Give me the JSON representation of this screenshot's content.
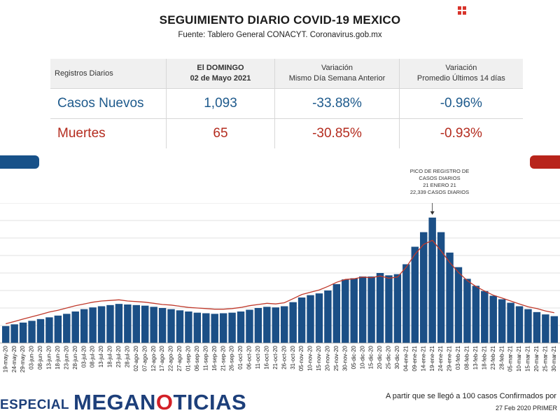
{
  "header": {
    "title": "SEGUIMIENTO DIARIO COVID-19 MEXICO",
    "source": "Fuente: Tablero General CONACYT. Coronavirus.gob.mx"
  },
  "corner_icon": "grid-icon",
  "table": {
    "col0": "Registros Diarios",
    "col1_line1": "El DOMINGO",
    "col1_line2": "02 de Mayo 2021",
    "col2_line1": "Variación",
    "col2_line2": "Mismo Día Semana Anterior",
    "col3_line1": "Variación",
    "col3_line2": "Promedio Últimos 14 días",
    "rows": [
      {
        "label": "Casos Nuevos",
        "value": "1,093",
        "weekly": "-33.88%",
        "avg14": "-0.96%"
      },
      {
        "label": "Muertes",
        "value": "65",
        "weekly": "-30.85%",
        "avg14": "-0.93%"
      }
    ]
  },
  "annotation": {
    "line1": "PICO DE REGISTRO DE",
    "line2": "CASOS DIARIOS",
    "line3": "21 ENERO 21",
    "line4": "22,339 CASOS DIARIOS"
  },
  "footer": {
    "especial": "ESPECIAL",
    "brand_part1": "MEGAN",
    "brand_accent": "O",
    "brand_part2": "TICIAS",
    "note": "A partir que se llegó a 100 casos Confirmados por",
    "date": "27 Feb 2020 PRIMER"
  },
  "colors": {
    "bars": "#1b4f86",
    "line": "#c0392b",
    "brand": "#1d3f7a",
    "accent": "#d32027"
  },
  "chart_data": {
    "type": "bar",
    "ylim": [
      0,
      24000
    ],
    "grid": true,
    "tick_labels": [
      "19-may-20",
      "24-may-20",
      "29-may-20",
      "03-jun-20",
      "08-jun-20",
      "13-jun-20",
      "18-jun-20",
      "23-jun-20",
      "28-jun-20",
      "03-jul-20",
      "08-jul-20",
      "13-jul-20",
      "18-jul-20",
      "23-jul-20",
      "28-jul-20",
      "02-ago-20",
      "07-ago-20",
      "12-ago-20",
      "17-ago-20",
      "22-ago-20",
      "27-ago-20",
      "01-sep-20",
      "06-sep-20",
      "11-sep-20",
      "16-sep-20",
      "21-sep-20",
      "26-sep-20",
      "01-oct-20",
      "06-oct-20",
      "11-oct-20",
      "16-oct-20",
      "21-oct-20",
      "26-oct-20",
      "31-oct-20",
      "05-nov-20",
      "10-nov-20",
      "15-nov-20",
      "20-nov-20",
      "25-nov-20",
      "30-nov-20",
      "05-dic-20",
      "10-dic-20",
      "15-dic-20",
      "20-dic-20",
      "25-dic-20",
      "30-dic-20",
      "04-ene-21",
      "09-ene-21",
      "14-ene-21",
      "19-ene-21",
      "24-ene-21",
      "29-ene-21",
      "03-feb-21",
      "08-feb-21",
      "13-feb-21",
      "18-feb-21",
      "23-feb-21",
      "28-feb-21",
      "05-mar-21",
      "10-mar-21",
      "15-mar-21",
      "20-mar-21",
      "25-mar-21",
      "30-mar-21"
    ],
    "series": [
      {
        "kind": "bars",
        "values": [
          2900,
          3200,
          3500,
          3800,
          4100,
          4400,
          4700,
          5000,
          5400,
          5800,
          6100,
          6300,
          6500,
          6700,
          6600,
          6500,
          6400,
          6200,
          6000,
          5800,
          5600,
          5400,
          5200,
          5100,
          5000,
          5100,
          5200,
          5400,
          5700,
          6000,
          6200,
          6100,
          6300,
          7000,
          7800,
          8200,
          8500,
          9000,
          10100,
          10900,
          11100,
          11400,
          11400,
          12000,
          11600,
          11800,
          13500,
          16500,
          19000,
          21500,
          19000,
          15500,
          13000,
          11000,
          9800,
          8900,
          8100,
          7500,
          6900,
          6300,
          5800,
          5300,
          4900,
          4600
        ]
      },
      {
        "kind": "line",
        "values": [
          3300,
          3700,
          4100,
          4500,
          4900,
          5300,
          5600,
          6000,
          6400,
          6700,
          7000,
          7200,
          7300,
          7400,
          7200,
          7100,
          7000,
          6800,
          6600,
          6500,
          6300,
          6100,
          6000,
          5900,
          5800,
          5800,
          5900,
          6100,
          6400,
          6600,
          6800,
          6700,
          6900,
          7600,
          8300,
          8700,
          9100,
          9700,
          10400,
          10900,
          11000,
          11300,
          11200,
          11500,
          11100,
          11300,
          13000,
          15200,
          16900,
          17600,
          15800,
          13800,
          12100,
          10700,
          9700,
          8900,
          8200,
          7700,
          7200,
          6700,
          6200,
          5900,
          5500,
          5200
        ]
      }
    ]
  }
}
